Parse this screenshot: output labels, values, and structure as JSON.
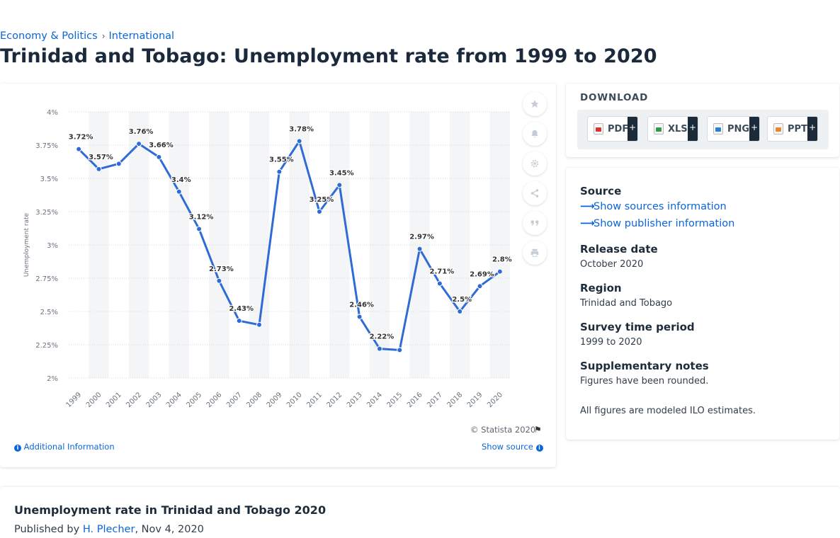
{
  "breadcrumb": {
    "item1": "Economy & Politics",
    "separator": "›",
    "item2": "International"
  },
  "page_title": "Trinidad and Tobago: Unemployment rate from 1999 to 2020",
  "chart_actions": [
    "star-icon",
    "bell-icon",
    "gear-icon",
    "share-icon",
    "quote-icon",
    "print-icon"
  ],
  "chart_footer": {
    "copyright": "© Statista 2020",
    "additional_info": "Additional Information",
    "show_source": "Show source"
  },
  "chart_data": {
    "type": "line",
    "x": [
      "1999",
      "2000",
      "2001",
      "2002",
      "2003",
      "2004",
      "2005",
      "2006",
      "2007",
      "2008",
      "2009",
      "2010",
      "2011",
      "2012",
      "2013",
      "2014",
      "2015",
      "2016",
      "2017",
      "2018",
      "2019",
      "2020"
    ],
    "values": [
      3.72,
      3.57,
      3.61,
      3.76,
      3.66,
      3.4,
      3.12,
      2.73,
      2.43,
      2.4,
      3.55,
      3.78,
      3.25,
      3.45,
      2.46,
      2.22,
      2.21,
      2.97,
      2.71,
      2.5,
      2.69,
      2.8
    ],
    "labels": [
      "3.72%",
      "3.57%",
      "",
      "3.76%",
      "3.66%",
      "3.4%",
      "3.12%",
      "2.73%",
      "2.43%",
      "",
      "3.55%",
      "3.78%",
      "3.25%",
      "3.45%",
      "2.46%",
      "2.22%",
      "",
      "2.97%",
      "2.71%",
      "2.5%",
      "2.69%",
      "2.8%"
    ],
    "ylabel": "Unemployment rate",
    "y_ticks": [
      "2%",
      "2.25%",
      "2.5%",
      "2.75%",
      "3%",
      "3.25%",
      "3.5%",
      "3.75%",
      "4%"
    ],
    "ylim": [
      2,
      4
    ],
    "grid": true,
    "color": "#2f6bd6"
  },
  "download": {
    "title": "DOWNLOAD",
    "buttons": [
      {
        "label": "PDF",
        "plus": "+"
      },
      {
        "label": "XLS",
        "plus": "+"
      },
      {
        "label": "PNG",
        "plus": "+"
      },
      {
        "label": "PPT",
        "plus": "+"
      }
    ]
  },
  "info": {
    "source_label": "Source",
    "show_sources": "Show sources information",
    "show_publisher": "Show publisher information",
    "release_label": "Release date",
    "release_value": "October 2020",
    "region_label": "Region",
    "region_value": "Trinidad and Tobago",
    "survey_label": "Survey time period",
    "survey_value": "1999 to 2020",
    "notes_label": "Supplementary notes",
    "notes_value1": "Figures have been rounded.",
    "notes_value2": "All figures are modeled ILO estimates."
  },
  "bottom": {
    "title": "Unemployment rate in Trinidad and Tobago 2020",
    "published_prefix": "Published by",
    "author": "H. Plecher",
    "date": ", Nov 4, 2020"
  }
}
